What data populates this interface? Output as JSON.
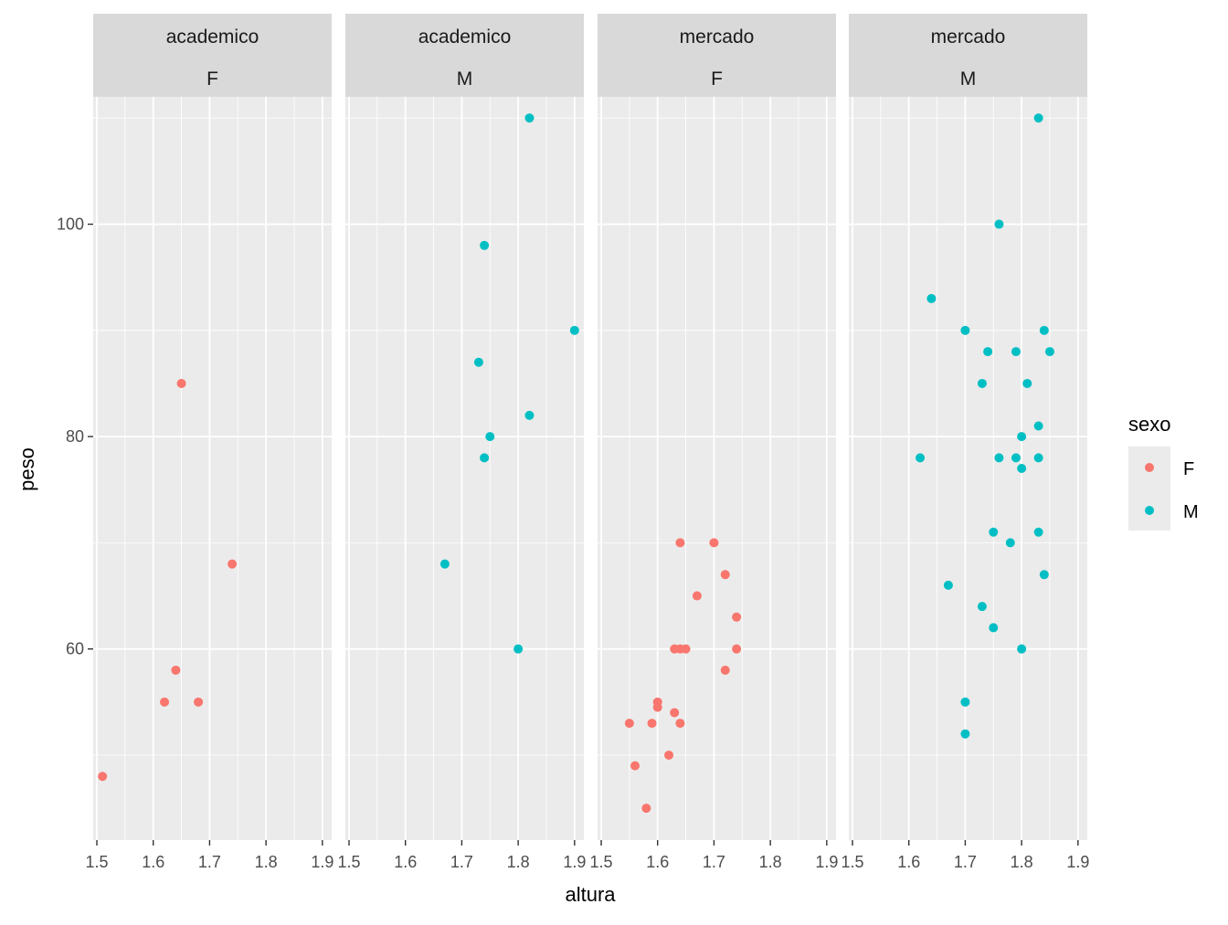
{
  "chart_data": {
    "type": "scatter",
    "xlabel": "altura",
    "ylabel": "peso",
    "xlim": [
      1.5,
      1.91
    ],
    "ylim": [
      42,
      112
    ],
    "x_ticks": [
      1.5,
      1.6,
      1.7,
      1.8,
      1.9
    ],
    "x_tick_labels": [
      "1.5",
      "1.6",
      "1.7",
      "1.8",
      "1.9"
    ],
    "y_ticks": [
      60,
      80,
      100
    ],
    "y_tick_labels": [
      "60",
      "80",
      "100"
    ],
    "grid": true,
    "legend": {
      "title": "sexo",
      "placement": "right",
      "entries": [
        {
          "label": "F",
          "color": "#F8766D"
        },
        {
          "label": "M",
          "color": "#00BFC4"
        }
      ]
    },
    "colors": {
      "F": "#F8766D",
      "M": "#00BFC4"
    },
    "panels": [
      {
        "strip": [
          "academico",
          "F"
        ],
        "series": "F",
        "points": [
          {
            "x": 1.51,
            "y": 48
          },
          {
            "x": 1.62,
            "y": 55
          },
          {
            "x": 1.64,
            "y": 58
          },
          {
            "x": 1.65,
            "y": 85
          },
          {
            "x": 1.68,
            "y": 55
          },
          {
            "x": 1.74,
            "y": 68
          }
        ]
      },
      {
        "strip": [
          "academico",
          "M"
        ],
        "series": "M",
        "points": [
          {
            "x": 1.67,
            "y": 68
          },
          {
            "x": 1.73,
            "y": 87
          },
          {
            "x": 1.74,
            "y": 98
          },
          {
            "x": 1.74,
            "y": 78
          },
          {
            "x": 1.75,
            "y": 80
          },
          {
            "x": 1.8,
            "y": 60
          },
          {
            "x": 1.82,
            "y": 110
          },
          {
            "x": 1.82,
            "y": 82
          },
          {
            "x": 1.9,
            "y": 90
          }
        ]
      },
      {
        "strip": [
          "mercado",
          "F"
        ],
        "series": "F",
        "points": [
          {
            "x": 1.55,
            "y": 53
          },
          {
            "x": 1.56,
            "y": 49
          },
          {
            "x": 1.58,
            "y": 45
          },
          {
            "x": 1.59,
            "y": 53
          },
          {
            "x": 1.6,
            "y": 55
          },
          {
            "x": 1.6,
            "y": 54.5
          },
          {
            "x": 1.62,
            "y": 50
          },
          {
            "x": 1.63,
            "y": 60
          },
          {
            "x": 1.63,
            "y": 54
          },
          {
            "x": 1.64,
            "y": 70
          },
          {
            "x": 1.64,
            "y": 60
          },
          {
            "x": 1.64,
            "y": 53
          },
          {
            "x": 1.65,
            "y": 60
          },
          {
            "x": 1.67,
            "y": 65
          },
          {
            "x": 1.7,
            "y": 70
          },
          {
            "x": 1.72,
            "y": 67
          },
          {
            "x": 1.72,
            "y": 58
          },
          {
            "x": 1.74,
            "y": 63
          },
          {
            "x": 1.74,
            "y": 60
          }
        ]
      },
      {
        "strip": [
          "mercado",
          "M"
        ],
        "series": "M",
        "points": [
          {
            "x": 1.62,
            "y": 78
          },
          {
            "x": 1.64,
            "y": 93
          },
          {
            "x": 1.67,
            "y": 66
          },
          {
            "x": 1.7,
            "y": 90
          },
          {
            "x": 1.7,
            "y": 55
          },
          {
            "x": 1.7,
            "y": 52
          },
          {
            "x": 1.73,
            "y": 85
          },
          {
            "x": 1.73,
            "y": 64
          },
          {
            "x": 1.74,
            "y": 88
          },
          {
            "x": 1.75,
            "y": 71
          },
          {
            "x": 1.75,
            "y": 62
          },
          {
            "x": 1.76,
            "y": 100
          },
          {
            "x": 1.76,
            "y": 78
          },
          {
            "x": 1.78,
            "y": 70
          },
          {
            "x": 1.79,
            "y": 88
          },
          {
            "x": 1.79,
            "y": 78
          },
          {
            "x": 1.8,
            "y": 80
          },
          {
            "x": 1.8,
            "y": 77
          },
          {
            "x": 1.8,
            "y": 60
          },
          {
            "x": 1.81,
            "y": 85
          },
          {
            "x": 1.83,
            "y": 110
          },
          {
            "x": 1.83,
            "y": 81
          },
          {
            "x": 1.83,
            "y": 78
          },
          {
            "x": 1.83,
            "y": 71
          },
          {
            "x": 1.84,
            "y": 90
          },
          {
            "x": 1.84,
            "y": 67
          },
          {
            "x": 1.85,
            "y": 88
          }
        ]
      }
    ]
  }
}
